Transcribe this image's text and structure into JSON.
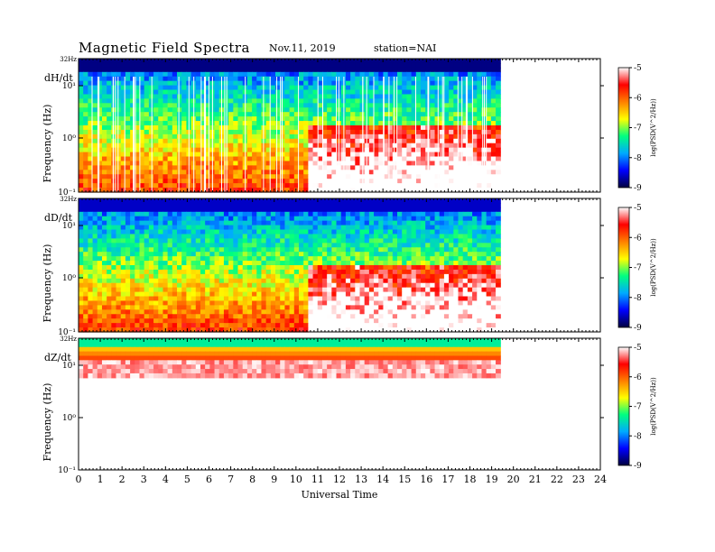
{
  "header": {
    "title": "Magnetic  Field  Spectra",
    "date": "Nov.11, 2019",
    "station": "station=NAI"
  },
  "chart_data": [
    {
      "type": "heatmap",
      "panel_label": "dH/dt",
      "top_label": "32Hz",
      "ylabel": "Frequency  (Hz)",
      "y_scale": "log",
      "yticks": [
        "10¹",
        "10⁰",
        "10⁻¹"
      ],
      "xlabel": "Universal  Time",
      "xlim": [
        0,
        24
      ],
      "data_extent_hours": 19.4,
      "colorbar": {
        "label": "log(PSD(V^2/Hz))",
        "ticks": [
          "-5",
          "-6",
          "-7",
          "-8",
          "-9"
        ],
        "range": [
          -9,
          -5
        ]
      },
      "features": {
        "gaps": "frequent data gaps from 0 to 19.4 UT",
        "enhancement": "broadband enhancement 11-19 UT"
      }
    },
    {
      "type": "heatmap",
      "panel_label": "dD/dt",
      "top_label": "32Hz",
      "ylabel": "Frequency  (Hz)",
      "y_scale": "log",
      "yticks": [
        "10¹",
        "10⁰",
        "10⁻¹"
      ],
      "xlabel": "Universal  Time",
      "xlim": [
        0,
        24
      ],
      "data_extent_hours": 19.4,
      "colorbar": {
        "label": "log(PSD(V^2/Hz))",
        "ticks": [
          "-5",
          "-6",
          "-7",
          "-8",
          "-9"
        ],
        "range": [
          -9,
          -5
        ]
      },
      "features": {
        "enhancement": "low-frequency enhancement 10.5-19.4 UT"
      }
    },
    {
      "type": "heatmap",
      "panel_label": "dZ/dt",
      "top_label": "32Hz",
      "ylabel": "Frequency  (Hz)",
      "y_scale": "log",
      "yticks": [
        "10¹",
        "10⁰",
        "10⁻¹"
      ],
      "xlabel": "Universal  Time",
      "xlim": [
        0,
        24
      ],
      "data_extent_hours": 19.4,
      "colorbar": {
        "label": "log(PSD(V^2/Hz))",
        "ticks": [
          "-5",
          "-6",
          "-7",
          "-8",
          "-9"
        ],
        "range": [
          -9,
          -5
        ]
      },
      "features": {
        "note": "strong power only above ~3 Hz"
      }
    }
  ],
  "xticks": [
    "0",
    "1",
    "2",
    "3",
    "4",
    "5",
    "6",
    "7",
    "8",
    "9",
    "10",
    "11",
    "12",
    "13",
    "14",
    "15",
    "16",
    "17",
    "18",
    "19",
    "20",
    "21",
    "22",
    "23",
    "24"
  ],
  "colors": {
    "colormap": [
      "#000040",
      "#0000ff",
      "#00aaff",
      "#00ff80",
      "#ffff00",
      "#ff8000",
      "#ff0000",
      "#ffffff"
    ]
  }
}
